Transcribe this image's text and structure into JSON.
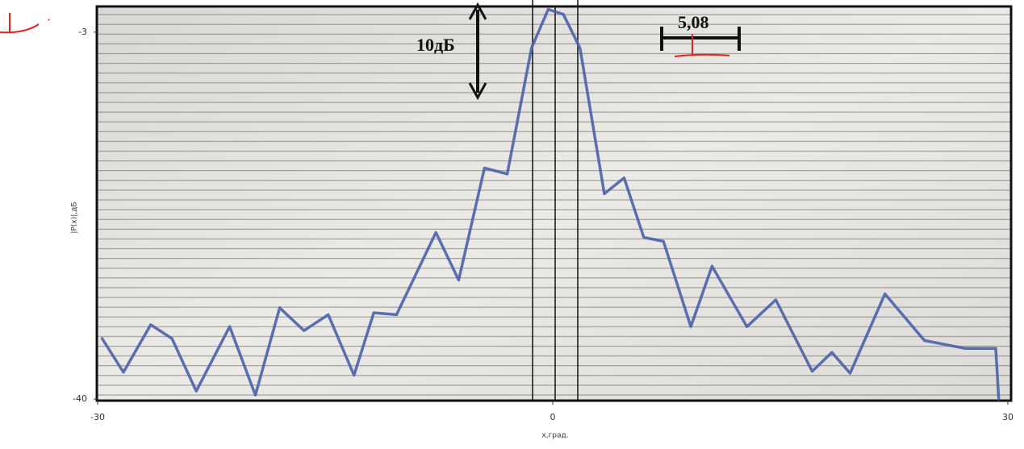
{
  "chart_data": {
    "type": "line",
    "y_label": "|P(x)|,дБ",
    "x_label": "x,град.",
    "annotations": [
      "10дБ",
      "5,08"
    ],
    "color": "#4a62a8",
    "x": [
      -29.7,
      -28.3,
      -26.5,
      -25.1,
      -23.5,
      -21.3,
      -19.6,
      -18.0,
      -16.4,
      -14.8,
      -13.1,
      -11.8,
      -10.3,
      -7.7,
      -6.2,
      -4.5,
      -3.0,
      -1.4,
      -0.3,
      0.7,
      1.8,
      3.4,
      4.7,
      6.0,
      7.3,
      9.1,
      10.5,
      12.8,
      14.7,
      17.1,
      18.4,
      19.6,
      21.9,
      24.5,
      27.2,
      29.2,
      29.4
    ],
    "values": [
      -33.9,
      -37.3,
      -32.5,
      -33.9,
      -39.2,
      -32.7,
      -39.6,
      -30.8,
      -33.1,
      -31.5,
      -37.6,
      -31.3,
      -31.5,
      -23.2,
      -28.0,
      -16.7,
      -17.3,
      -4.6,
      -0.7,
      -1.2,
      -4.6,
      -19.3,
      -17.7,
      -23.7,
      -24.1,
      -32.7,
      -26.6,
      -32.7,
      -30.0,
      -37.2,
      -35.3,
      -37.4,
      -29.4,
      -34.1,
      -34.9,
      -34.9,
      -40
    ],
    "xlim": [
      -30,
      30
    ],
    "xticks": [
      -30,
      0,
      30
    ],
    "ylim": [
      -40,
      0
    ],
    "yticks": [
      -3,
      -40
    ]
  }
}
